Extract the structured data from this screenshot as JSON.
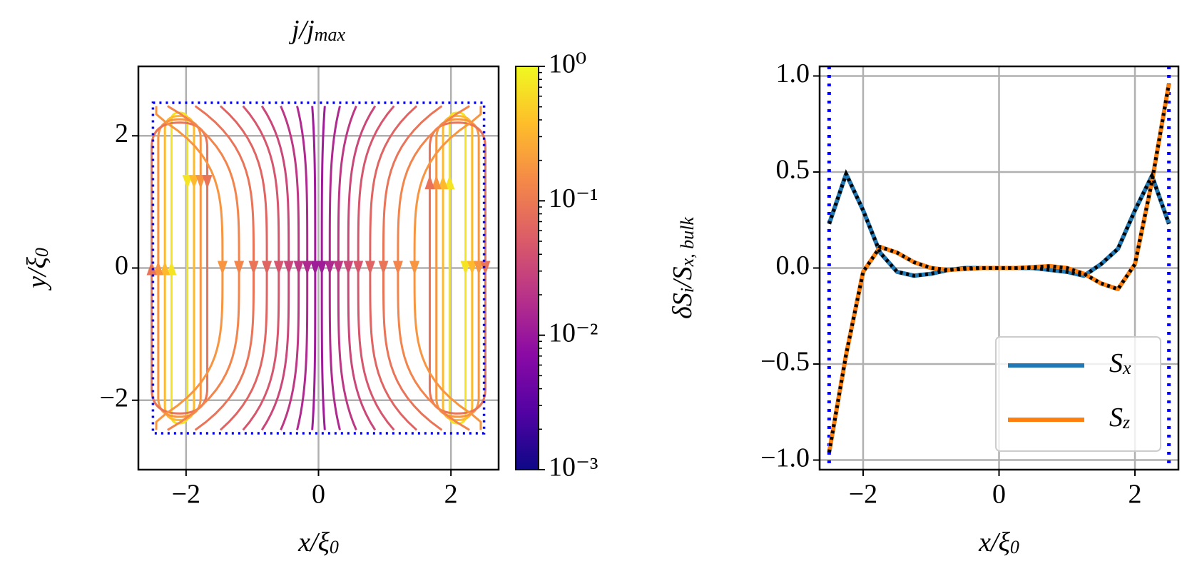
{
  "chart_data": [
    {
      "type": "streamplot",
      "title": [
        {
          "t": "j/j"
        },
        {
          "t": "max",
          "sub": true
        }
      ],
      "xlabel": [
        {
          "t": "x/ξ"
        },
        {
          "t": "0",
          "sub": true
        }
      ],
      "ylabel": [
        {
          "t": "y/ξ"
        },
        {
          "t": "0",
          "sub": true
        }
      ],
      "xlim": [
        -2.72,
        2.72
      ],
      "ylim": [
        -3.05,
        3.05
      ],
      "xticks": [
        {
          "value": -2,
          "label": "−2"
        },
        0,
        2
      ],
      "yticks": [
        {
          "value": -2,
          "label": "−2"
        },
        0,
        2
      ],
      "grid": true,
      "box": {
        "xlim": [
          -2.5,
          2.5
        ],
        "ylim": [
          -2.5,
          2.5
        ],
        "color": "#0000ff"
      },
      "colorbar": {
        "cmap": "plasma",
        "scale": "log",
        "lim": [
          0.001,
          1
        ],
        "ticks": [
          {
            "value": 1,
            "label": "10⁰"
          },
          {
            "value": 0.1,
            "label": "10⁻¹"
          },
          {
            "value": 0.01,
            "label": "10⁻²"
          },
          {
            "value": 0.001,
            "label": "10⁻³"
          }
        ]
      }
    },
    {
      "type": "line",
      "xlabel": [
        {
          "t": "x/ξ"
        },
        {
          "t": "0",
          "sub": true
        }
      ],
      "ylabel": [
        {
          "t": "δS"
        },
        {
          "t": "i",
          "sub": true
        },
        {
          "t": "/S"
        },
        {
          "t": "x, bulk",
          "sub": true
        }
      ],
      "x": [
        -2.5,
        -2.25,
        -2.0,
        -1.75,
        -1.5,
        -1.25,
        -1.0,
        -0.75,
        -0.5,
        -0.25,
        0,
        0.25,
        0.5,
        0.75,
        1.0,
        1.25,
        1.5,
        1.75,
        2.0,
        2.25,
        2.5
      ],
      "series": [
        {
          "name": [
            {
              "t": "S"
            },
            {
              "t": "x",
              "sub": true
            }
          ],
          "color": "#1f77b4",
          "values": [
            0.23,
            0.49,
            0.3,
            0.08,
            -0.02,
            -0.04,
            -0.03,
            -0.01,
            0,
            0,
            0,
            0,
            0,
            -0.01,
            -0.02,
            -0.04,
            0.02,
            0.1,
            0.3,
            0.48,
            0.23
          ]
        },
        {
          "name": [
            {
              "t": "S"
            },
            {
              "t": "z",
              "sub": true
            }
          ],
          "color": "#ff7f0e",
          "values": [
            -0.96,
            -0.45,
            -0.02,
            0.11,
            0.08,
            0.03,
            0,
            -0.01,
            -0.005,
            0,
            0,
            0,
            0.005,
            0.01,
            0,
            -0.03,
            -0.08,
            -0.11,
            0.02,
            0.45,
            0.96
          ]
        }
      ],
      "overlay": {
        "color": "#000000",
        "style": "dotted"
      },
      "vlines": {
        "x": [
          -2.5,
          2.5
        ],
        "color": "#0000ff"
      },
      "xlim": [
        -2.64,
        2.64
      ],
      "ylim": [
        -1.05,
        1.05
      ],
      "xticks": [
        {
          "value": -2,
          "label": "−2"
        },
        0,
        2
      ],
      "yticks": [
        {
          "value": -1,
          "label": "−1.0"
        },
        {
          "value": -0.5,
          "label": "−0.5"
        },
        {
          "value": 0,
          "label": "0.0"
        },
        {
          "value": 0.5,
          "label": "0.5"
        },
        {
          "value": 1,
          "label": "1.0"
        }
      ],
      "grid": true,
      "legend": "lower right"
    }
  ]
}
